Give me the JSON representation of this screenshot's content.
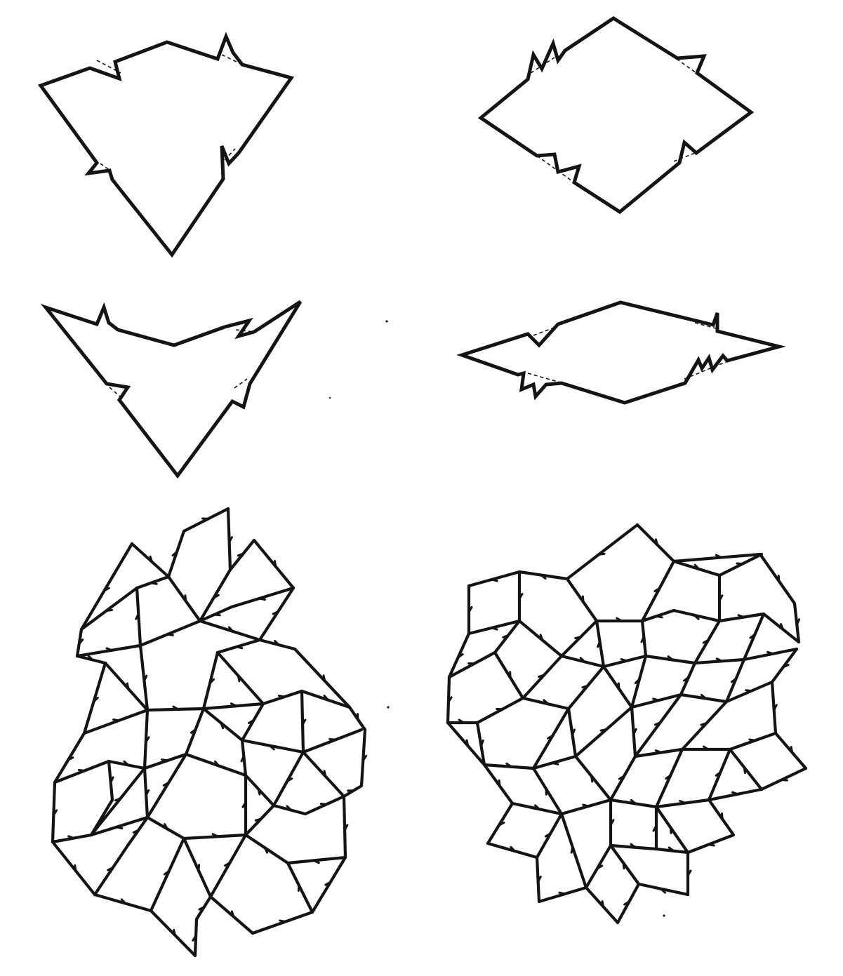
{
  "figure": {
    "ink_color": "#141414",
    "background_color": "#ffffff",
    "panels": [
      {
        "id": "kite-tile",
        "shape": "kite"
      },
      {
        "id": "fat-rhomb-tile",
        "shape": "fat-rhombus"
      },
      {
        "id": "dart-tile",
        "shape": "dart"
      },
      {
        "id": "thin-rhomb-tile",
        "shape": "thin-rhombus"
      },
      {
        "id": "kite-dart-tiling",
        "shape": "kite-and-dart-patch"
      },
      {
        "id": "rhomb-tiling",
        "shape": "rhombus-patch"
      }
    ]
  }
}
